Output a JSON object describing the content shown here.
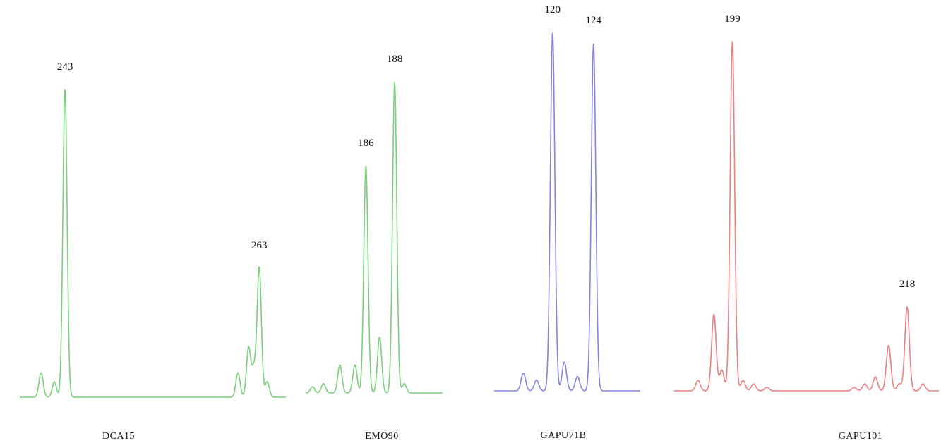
{
  "chart_data": [
    {
      "type": "line",
      "marker": "DCA15",
      "color": "#7ccf7c",
      "x_range": [
        0,
        100
      ],
      "peaks": [
        {
          "x": 8,
          "height": 0.08,
          "label": ""
        },
        {
          "x": 13,
          "height": 0.05,
          "label": ""
        },
        {
          "x": 17,
          "height": 1.0,
          "label": "243"
        },
        {
          "x": 82,
          "height": 0.08,
          "label": ""
        },
        {
          "x": 86,
          "height": 0.16,
          "label": ""
        },
        {
          "x": 88,
          "height": 0.09,
          "label": ""
        },
        {
          "x": 90,
          "height": 0.42,
          "label": "263"
        },
        {
          "x": 93,
          "height": 0.05,
          "label": ""
        }
      ]
    },
    {
      "type": "line",
      "marker": "EMO90",
      "color": "#7ccf7c",
      "x_range": [
        0,
        100
      ],
      "peaks": [
        {
          "x": 5,
          "height": 0.02,
          "label": ""
        },
        {
          "x": 13,
          "height": 0.03,
          "label": ""
        },
        {
          "x": 25,
          "height": 0.09,
          "label": ""
        },
        {
          "x": 36,
          "height": 0.09,
          "label": ""
        },
        {
          "x": 44,
          "height": 0.73,
          "label": "186"
        },
        {
          "x": 54,
          "height": 0.18,
          "label": ""
        },
        {
          "x": 65,
          "height": 1.0,
          "label": "188"
        },
        {
          "x": 72,
          "height": 0.03,
          "label": ""
        }
      ]
    },
    {
      "type": "line",
      "marker": "GAPU71B",
      "color": "#8585e0",
      "x_range": [
        0,
        100
      ],
      "peaks": [
        {
          "x": 20,
          "height": 0.05,
          "label": ""
        },
        {
          "x": 29,
          "height": 0.03,
          "label": ""
        },
        {
          "x": 40,
          "height": 1.0,
          "label": "120"
        },
        {
          "x": 48,
          "height": 0.08,
          "label": ""
        },
        {
          "x": 57,
          "height": 0.04,
          "label": ""
        },
        {
          "x": 68,
          "height": 0.97,
          "label": "124"
        }
      ]
    },
    {
      "type": "line",
      "marker": "GAPU101",
      "color": "#ee8080",
      "x_range": [
        0,
        100
      ],
      "peaks": [
        {
          "x": 9,
          "height": 0.03,
          "label": ""
        },
        {
          "x": 15,
          "height": 0.22,
          "label": ""
        },
        {
          "x": 18,
          "height": 0.06,
          "label": ""
        },
        {
          "x": 22,
          "height": 1.0,
          "label": "199"
        },
        {
          "x": 26,
          "height": 0.03,
          "label": ""
        },
        {
          "x": 30,
          "height": 0.02,
          "label": ""
        },
        {
          "x": 35,
          "height": 0.01,
          "label": ""
        },
        {
          "x": 68,
          "height": 0.01,
          "label": ""
        },
        {
          "x": 72,
          "height": 0.02,
          "label": ""
        },
        {
          "x": 76,
          "height": 0.04,
          "label": ""
        },
        {
          "x": 81,
          "height": 0.13,
          "label": ""
        },
        {
          "x": 85,
          "height": 0.02,
          "label": ""
        },
        {
          "x": 88,
          "height": 0.24,
          "label": "218"
        },
        {
          "x": 94,
          "height": 0.02,
          "label": ""
        }
      ]
    }
  ]
}
